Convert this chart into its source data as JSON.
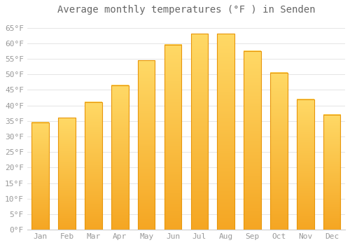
{
  "title": "Average monthly temperatures (°F ) in Senden",
  "months": [
    "Jan",
    "Feb",
    "Mar",
    "Apr",
    "May",
    "Jun",
    "Jul",
    "Aug",
    "Sep",
    "Oct",
    "Nov",
    "Dec"
  ],
  "values": [
    34.5,
    36.0,
    41.0,
    46.5,
    54.5,
    59.5,
    63.0,
    63.0,
    57.5,
    50.5,
    42.0,
    37.0
  ],
  "bar_color_bottom": "#F5A623",
  "bar_color_top": "#FFD966",
  "bar_edge_color": "#E8960A",
  "background_color": "#FFFFFF",
  "grid_color": "#E0E0E0",
  "text_color": "#999999",
  "title_color": "#666666",
  "ylim": [
    0,
    68
  ],
  "yticks": [
    0,
    5,
    10,
    15,
    20,
    25,
    30,
    35,
    40,
    45,
    50,
    55,
    60,
    65
  ],
  "title_fontsize": 10,
  "tick_fontsize": 8,
  "bar_width": 0.65
}
